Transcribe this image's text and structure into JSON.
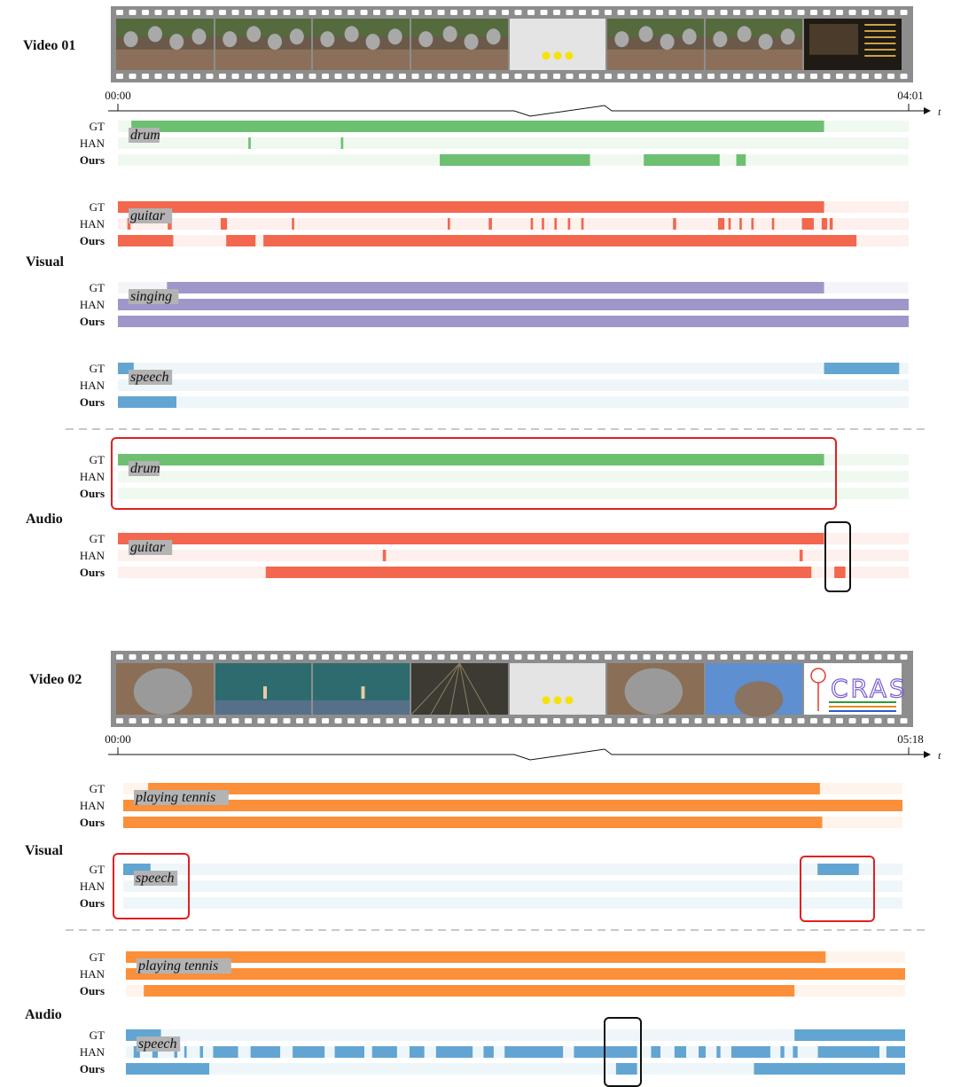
{
  "colors": {
    "drum": "#6cc070",
    "guitar": "#f2674e",
    "singing": "#9f97c9",
    "speech": "#62a5d2",
    "tennis": "#fb8f3a",
    "highlight_red": "#e02020",
    "highlight_black": "#111111",
    "film": "#8d8d8d",
    "film_hole": "#ffffff",
    "label_bg": "#b3b3b3"
  },
  "row_labels": {
    "gt": "GT",
    "han": "HAN",
    "ours": "Ours"
  },
  "axis_symbol": "t",
  "videos": [
    {
      "id": "v1",
      "title": "Video 01",
      "time_start": "00:00",
      "time_end": "04:01",
      "frames": [
        {
          "name": "frame-crowd-1",
          "scene": "crowd"
        },
        {
          "name": "frame-crowd-2",
          "scene": "crowd"
        },
        {
          "name": "frame-crowd-3",
          "scene": "crowd"
        },
        {
          "name": "frame-crowd-4",
          "scene": "crowd"
        },
        {
          "name": "frame-ellipsis",
          "scene": "ellipsis"
        },
        {
          "name": "frame-crowd-5",
          "scene": "crowd"
        },
        {
          "name": "frame-guitarist",
          "scene": "crowd"
        },
        {
          "name": "frame-end-credits",
          "scene": "credits"
        }
      ],
      "modalities": [
        {
          "label": "Visual",
          "events": [
            {
              "name": "drum",
              "color": "drum",
              "rows": [
                [
                  [
                    0.017,
                    0.893
                  ]
                ],
                [
                  [
                    0.165,
                    0.168
                  ],
                  [
                    0.282,
                    0.285
                  ]
                ],
                [
                  [
                    0.407,
                    0.597
                  ],
                  [
                    0.665,
                    0.761
                  ],
                  [
                    0.782,
                    0.794
                  ]
                ]
              ]
            },
            {
              "name": "guitar",
              "color": "guitar",
              "rows": [
                [
                  [
                    0.0,
                    0.893
                  ]
                ],
                [
                  [
                    0.012,
                    0.016
                  ],
                  [
                    0.063,
                    0.068
                  ],
                  [
                    0.13,
                    0.138
                  ],
                  [
                    0.22,
                    0.223
                  ],
                  [
                    0.417,
                    0.42
                  ],
                  [
                    0.469,
                    0.473
                  ],
                  [
                    0.522,
                    0.525
                  ],
                  [
                    0.536,
                    0.539
                  ],
                  [
                    0.552,
                    0.555
                  ],
                  [
                    0.569,
                    0.572
                  ],
                  [
                    0.586,
                    0.589
                  ],
                  [
                    0.702,
                    0.706
                  ],
                  [
                    0.759,
                    0.767
                  ],
                  [
                    0.772,
                    0.775
                  ],
                  [
                    0.786,
                    0.789
                  ],
                  [
                    0.801,
                    0.804
                  ],
                  [
                    0.827,
                    0.83
                  ],
                  [
                    0.865,
                    0.88
                  ],
                  [
                    0.89,
                    0.897
                  ],
                  [
                    0.9,
                    0.904
                  ]
                ],
                [
                  [
                    0.0,
                    0.07
                  ],
                  [
                    0.137,
                    0.174
                  ],
                  [
                    0.184,
                    0.934
                  ]
                ]
              ]
            },
            {
              "name": "singing",
              "color": "singing",
              "rows": [
                [
                  [
                    0.062,
                    0.893
                  ]
                ],
                [
                  [
                    0.0,
                    1.0
                  ]
                ],
                [
                  [
                    0.0,
                    1.0
                  ]
                ]
              ]
            },
            {
              "name": "speech",
              "color": "speech",
              "rows": [
                [
                  [
                    0.0,
                    0.02
                  ],
                  [
                    0.893,
                    0.988
                  ]
                ],
                [],
                [
                  [
                    0.0,
                    0.074
                  ]
                ]
              ]
            }
          ]
        },
        {
          "label": "Audio",
          "events": [
            {
              "name": "drum",
              "color": "drum",
              "rows": [
                [
                  [
                    0.0,
                    0.893
                  ]
                ],
                [],
                []
              ]
            },
            {
              "name": "guitar",
              "color": "guitar",
              "rows": [
                [
                  [
                    0.0,
                    0.893
                  ]
                ],
                [
                  [
                    0.335,
                    0.339
                  ],
                  [
                    0.862,
                    0.866
                  ]
                ],
                [
                  [
                    0.187,
                    0.877
                  ],
                  [
                    0.906,
                    0.92
                  ]
                ]
              ]
            }
          ]
        }
      ]
    },
    {
      "id": "v2",
      "title": "Video 02",
      "time_start": "00:00",
      "time_end": "05:18",
      "frames": [
        {
          "name": "frame-person-1",
          "scene": "face"
        },
        {
          "name": "frame-tennis-court-1",
          "scene": "court"
        },
        {
          "name": "frame-tennis-court-2",
          "scene": "court"
        },
        {
          "name": "frame-tennis-dome",
          "scene": "dome"
        },
        {
          "name": "frame-ellipsis",
          "scene": "ellipsis"
        },
        {
          "name": "frame-person-2",
          "scene": "face"
        },
        {
          "name": "frame-person-sky",
          "scene": "sky"
        },
        {
          "name": "frame-cras-drawing",
          "scene": "drawing",
          "text": "CRAS"
        }
      ],
      "modalities": [
        {
          "label": "Visual",
          "events": [
            {
              "name": "playing tennis",
              "color": "tennis",
              "rows": [
                [
                  [
                    0.032,
                    0.894
                  ]
                ],
                [
                  [
                    0.0,
                    1.0
                  ]
                ],
                [
                  [
                    0.0,
                    0.897
                  ]
                ]
              ]
            },
            {
              "name": "speech",
              "color": "speech",
              "rows": [
                [
                  [
                    0.0,
                    0.035
                  ],
                  [
                    0.891,
                    0.944
                  ]
                ],
                [],
                []
              ]
            }
          ]
        },
        {
          "label": "Audio",
          "events": [
            {
              "name": "playing tennis",
              "color": "tennis",
              "rows": [
                [
                  [
                    0.0,
                    0.898
                  ]
                ],
                [
                  [
                    0.0,
                    1.0
                  ]
                ],
                [
                  [
                    0.023,
                    0.858
                  ]
                ]
              ]
            },
            {
              "name": "speech",
              "color": "speech",
              "rows": [
                [
                  [
                    0.0,
                    0.045
                  ],
                  [
                    0.858,
                    1.0
                  ]
                ],
                [
                  [
                    0.01,
                    0.018
                  ],
                  [
                    0.034,
                    0.041
                  ],
                  [
                    0.062,
                    0.066
                  ],
                  [
                    0.075,
                    0.078
                  ],
                  [
                    0.095,
                    0.099
                  ],
                  [
                    0.112,
                    0.144
                  ],
                  [
                    0.16,
                    0.198
                  ],
                  [
                    0.214,
                    0.255
                  ],
                  [
                    0.268,
                    0.306
                  ],
                  [
                    0.316,
                    0.348
                  ],
                  [
                    0.364,
                    0.383
                  ],
                  [
                    0.398,
                    0.445
                  ],
                  [
                    0.459,
                    0.472
                  ],
                  [
                    0.486,
                    0.561
                  ],
                  [
                    0.575,
                    0.656
                  ],
                  [
                    0.674,
                    0.686
                  ],
                  [
                    0.704,
                    0.719
                  ],
                  [
                    0.735,
                    0.744
                  ],
                  [
                    0.758,
                    0.763
                  ],
                  [
                    0.777,
                    0.827
                  ],
                  [
                    0.84,
                    0.845
                  ],
                  [
                    0.856,
                    0.862
                  ],
                  [
                    0.888,
                    0.967
                  ],
                  [
                    0.976,
                    1.0
                  ]
                ],
                [
                  [
                    0.0,
                    0.107
                  ],
                  [
                    0.629,
                    0.656
                  ],
                  [
                    0.806,
                    1.0
                  ]
                ]
              ]
            }
          ]
        }
      ]
    }
  ]
}
